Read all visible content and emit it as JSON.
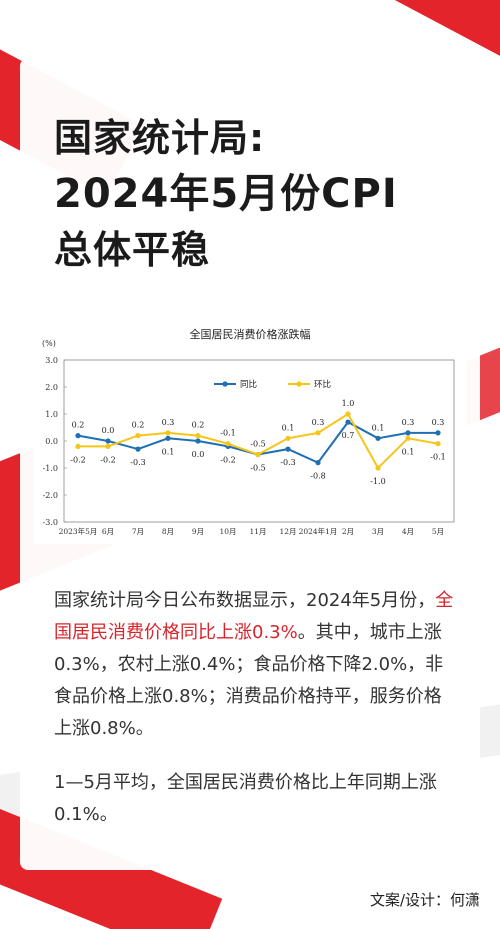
{
  "headline": {
    "line1": "国家统计局:",
    "line2": "2024年5月份CPI",
    "line3": "总体平稳"
  },
  "body": {
    "p1_part1": "国家统计局今日公布数据显示，2024年5月份，",
    "p1_highlight": "全国居民消费价格同比上涨0.3%",
    "p1_part2": "。其中，城市上涨0.3%，农村上涨0.4%；食品价格下降2.0%，非食品价格上涨0.8%；消费品价格持平，服务价格上涨0.8%。",
    "p2": "1—5月平均，全国居民消费价格比上年同期上涨0.1%。"
  },
  "credit": "文案/设计：何潇",
  "colors": {
    "accent": "#e3242b",
    "yoy": "#1f6fb2",
    "mom": "#f5c518"
  },
  "chart_data": {
    "type": "line",
    "title": "全国居民消费价格涨跌幅",
    "ylabel": "(%)",
    "ylim": [
      -3.0,
      3.0
    ],
    "yticks": [
      "3.0",
      "2.0",
      "1.0",
      "0.0",
      "-1.0",
      "-2.0",
      "-3.0"
    ],
    "categories": [
      "2023年5月",
      "6月",
      "7月",
      "8月",
      "9月",
      "10月",
      "11月",
      "12月",
      "2024年1月",
      "2月",
      "3月",
      "4月",
      "5月"
    ],
    "legend_position": "top-center",
    "series": [
      {
        "name": "同比",
        "color": "#1f6fb2",
        "values": [
          0.2,
          0.0,
          -0.3,
          0.1,
          0.0,
          -0.2,
          -0.5,
          -0.3,
          -0.8,
          0.7,
          0.1,
          0.3,
          0.3
        ],
        "labels": [
          "0.2",
          "0.0",
          "-0.3",
          "0.1",
          "0.0",
          "-0.2",
          "-0.5",
          "-0.3",
          "-0.8",
          "0.7",
          "0.1",
          "0.3",
          "0.3"
        ]
      },
      {
        "name": "环比",
        "color": "#f5c518",
        "values": [
          -0.2,
          -0.2,
          0.2,
          0.3,
          0.2,
          -0.1,
          -0.5,
          0.1,
          0.3,
          1.0,
          -1.0,
          0.1,
          -0.1
        ],
        "labels": [
          "-0.2",
          "-0.2",
          "0.2",
          "0.3",
          "0.2",
          "-0.1",
          "-0.5",
          "0.1",
          "0.3",
          "1.0",
          "-1.0",
          "0.1",
          "-0.1"
        ]
      }
    ]
  }
}
